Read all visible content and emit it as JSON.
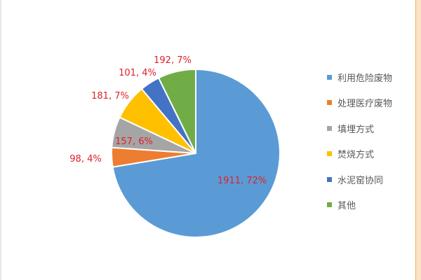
{
  "chart_data": {
    "type": "pie",
    "title": "",
    "start_angle": "12 o'clock",
    "direction": "clockwise",
    "legend_position": "right",
    "slices": [
      {
        "name": "利用危险废物",
        "value": 1911,
        "label": "1911, 72%",
        "color": "#5b9bd5"
      },
      {
        "name": "处理医疗废物",
        "value": 98,
        "label": "98, 4%",
        "color": "#ed7d31"
      },
      {
        "name": "填埋方式",
        "value": 157,
        "label": "157, 6%",
        "color": "#a5a5a5"
      },
      {
        "name": "焚烧方式",
        "value": 181,
        "label": "181, 7%",
        "color": "#ffc000"
      },
      {
        "name": "水泥窑协同",
        "value": 101,
        "label": "101, 4%",
        "color": "#4472c4"
      },
      {
        "name": "其他",
        "value": 192,
        "label": "192, 7%",
        "color": "#70ad47"
      }
    ],
    "label_color": "#e0202a"
  }
}
